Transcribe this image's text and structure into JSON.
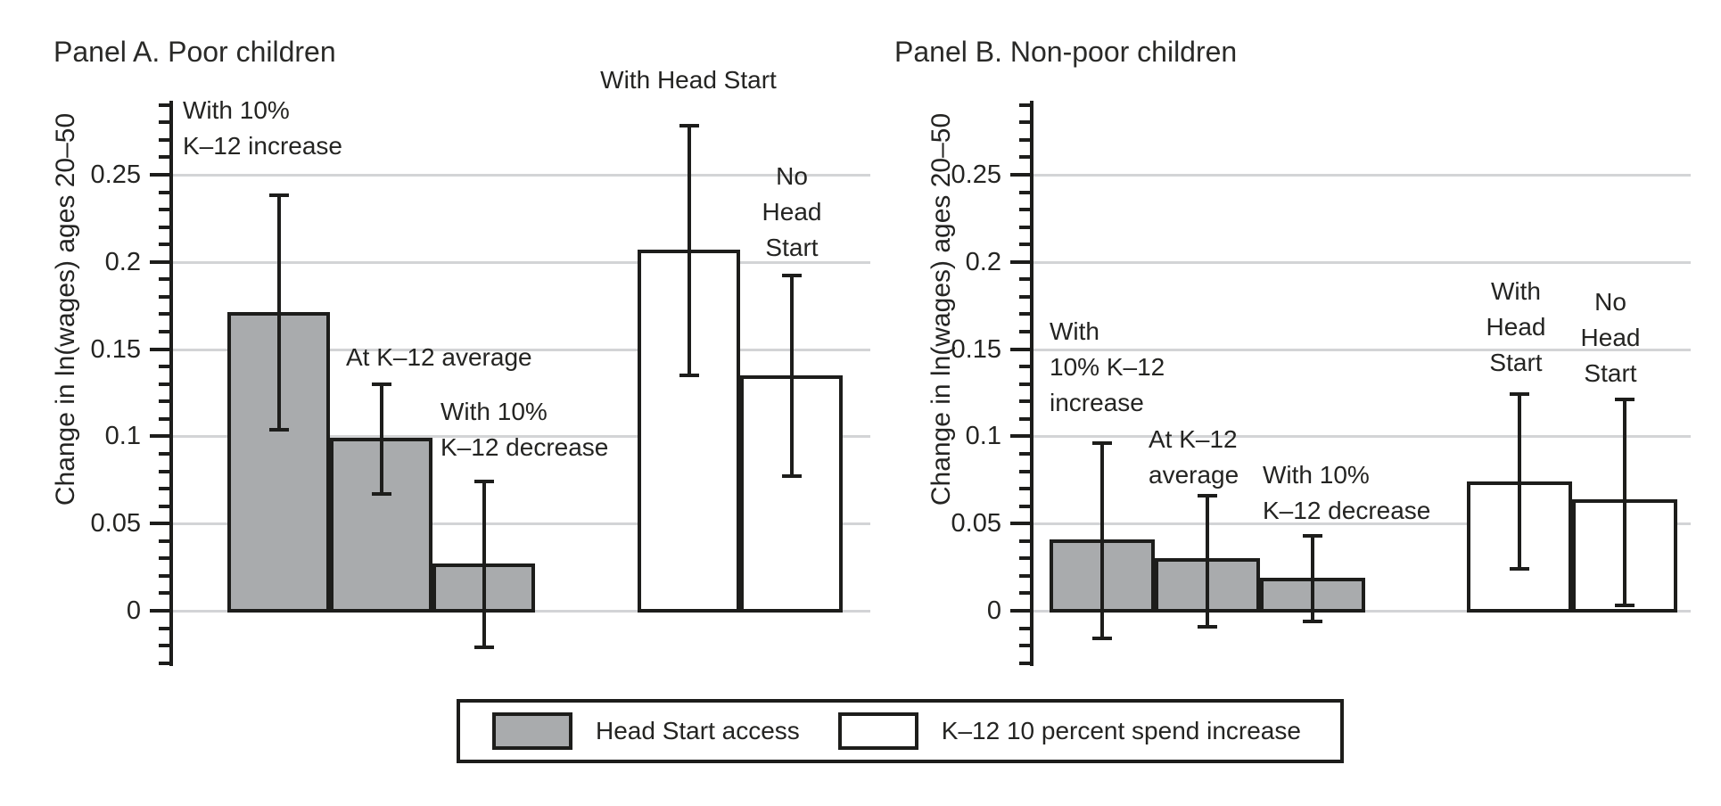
{
  "figure": {
    "background": "#ffffff",
    "text_color": "#242422",
    "line_color": "#1d1d1b",
    "gridline_color": "#d3d4d6",
    "bar_fill_gray": "#a9abad",
    "bar_fill_white": "#ffffff",
    "legend": {
      "items": [
        {
          "label": "Head Start access",
          "fill": "gray"
        },
        {
          "label": "K–12 10 percent spend increase",
          "fill": "white"
        }
      ]
    }
  },
  "chart_data": [
    {
      "type": "bar",
      "panel": "A",
      "title": "Panel A. Poor children",
      "ylabel": "Change in ln(wages) ages 20–50",
      "ylim": [
        -0.03,
        0.29
      ],
      "yticks": [
        0,
        0.05,
        0.1,
        0.15,
        0.2,
        0.25
      ],
      "ytick_labels": [
        "0",
        "0.05",
        "0.1",
        "0.15",
        "0.2",
        "0.25"
      ],
      "minor_tick_step": 0.01,
      "grid": true,
      "legend_position": "bottom",
      "series": [
        {
          "name": "Head Start access",
          "fill": "gray",
          "bars": [
            {
              "label": "With 10%\nK–12 increase",
              "value": 0.17,
              "ci_low": 0.104,
              "ci_high": 0.238
            },
            {
              "label": "At K–12 average",
              "value": 0.098,
              "ci_low": 0.067,
              "ci_high": 0.13
            },
            {
              "label": "With 10%\nK–12 decrease",
              "value": 0.026,
              "ci_low": -0.021,
              "ci_high": 0.074
            }
          ]
        },
        {
          "name": "K–12 10 percent spend increase",
          "fill": "white",
          "bars": [
            {
              "label": "With Head Start",
              "value": 0.206,
              "ci_low": 0.135,
              "ci_high": 0.278
            },
            {
              "label": "No\nHead\nStart",
              "value": 0.134,
              "ci_low": 0.077,
              "ci_high": 0.192
            }
          ]
        }
      ]
    },
    {
      "type": "bar",
      "panel": "B",
      "title": "Panel B. Non-poor children",
      "ylabel": "Change in ln(wages) ages 20–50",
      "ylim": [
        -0.03,
        0.29
      ],
      "yticks": [
        0,
        0.05,
        0.1,
        0.15,
        0.2,
        0.25
      ],
      "ytick_labels": [
        "0",
        "0.05",
        "0.1",
        "0.15",
        "0.2",
        "0.25"
      ],
      "minor_tick_step": 0.01,
      "grid": true,
      "series": [
        {
          "name": "Head Start access",
          "fill": "gray",
          "bars": [
            {
              "label": "With\n10% K–12\nincrease",
              "value": 0.04,
              "ci_low": -0.016,
              "ci_high": 0.096
            },
            {
              "label": "At K–12\naverage",
              "value": 0.029,
              "ci_low": -0.009,
              "ci_high": 0.066
            },
            {
              "label": "With 10%\nK–12 decrease",
              "value": 0.018,
              "ci_low": -0.006,
              "ci_high": 0.043
            }
          ]
        },
        {
          "name": "K–12 10 percent spend increase",
          "fill": "white",
          "bars": [
            {
              "label": "With\nHead\nStart",
              "value": 0.073,
              "ci_low": 0.024,
              "ci_high": 0.124
            },
            {
              "label": "No\nHead\nStart",
              "value": 0.063,
              "ci_low": 0.003,
              "ci_high": 0.121
            }
          ]
        }
      ]
    }
  ]
}
